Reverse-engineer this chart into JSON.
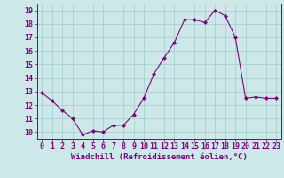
{
  "x": [
    0,
    1,
    2,
    3,
    4,
    5,
    6,
    7,
    8,
    9,
    10,
    11,
    12,
    13,
    14,
    15,
    16,
    17,
    18,
    19,
    20,
    21,
    22,
    23
  ],
  "y": [
    12.9,
    12.3,
    11.6,
    11.0,
    9.8,
    10.1,
    10.0,
    10.5,
    10.5,
    11.3,
    12.5,
    14.3,
    15.5,
    16.6,
    18.3,
    18.3,
    18.1,
    19.0,
    18.6,
    17.0,
    12.5,
    12.6,
    12.5,
    12.5
  ],
  "line_color": "#800080",
  "marker": "D",
  "marker_size": 2.0,
  "background_color": "#cce8e8",
  "grid_color": "#aacece",
  "xlabel": "Windchill (Refroidissement éolien,°C)",
  "xlabel_fontsize": 6.5,
  "tick_label_color": "#800080",
  "tick_fontsize": 6.0,
  "ylim": [
    9.5,
    19.5
  ],
  "xlim": [
    -0.5,
    23.5
  ],
  "yticks": [
    10,
    11,
    12,
    13,
    14,
    15,
    16,
    17,
    18,
    19
  ],
  "xticks": [
    0,
    1,
    2,
    3,
    4,
    5,
    6,
    7,
    8,
    9,
    10,
    11,
    12,
    13,
    14,
    15,
    16,
    17,
    18,
    19,
    20,
    21,
    22,
    23
  ]
}
